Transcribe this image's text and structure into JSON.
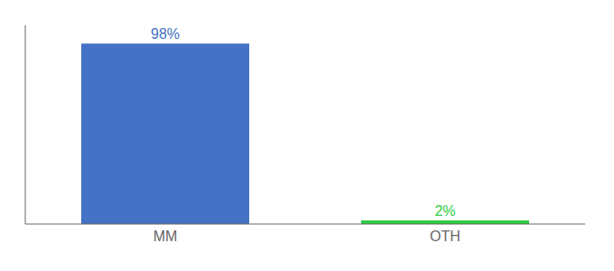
{
  "chart_data": {
    "type": "bar",
    "categories": [
      "MM",
      "OTH"
    ],
    "values": [
      98,
      2
    ],
    "value_labels": [
      "98%",
      "2%"
    ],
    "colors": [
      "#4472C4",
      "#2ECC40"
    ],
    "ylim": [
      0,
      108
    ],
    "data_labels": true,
    "tick_labels": "x",
    "grid": false
  }
}
